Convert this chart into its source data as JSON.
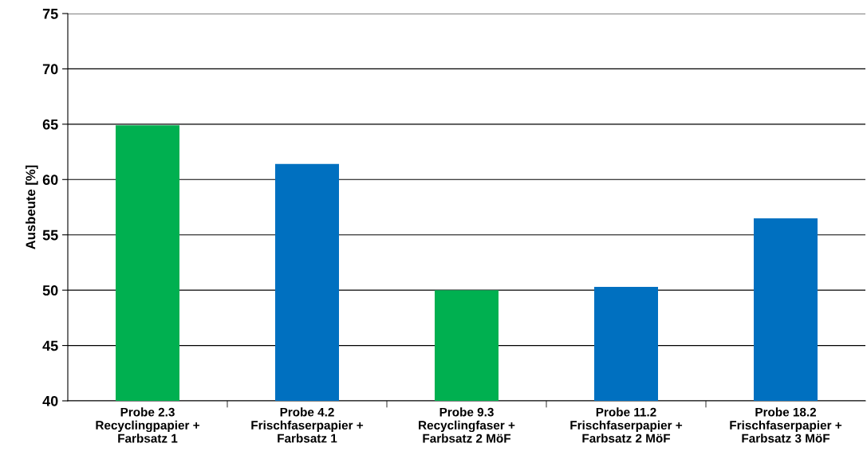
{
  "chart_data": {
    "type": "bar",
    "ylabel": "Ausbeute [%]",
    "categories": [
      "Probe 2.3\nRecyclingpapier +\nFarbsatz 1",
      "Probe 4.2\nFrischfaserpapier +\nFarbsatz 1",
      "Probe 9.3\nRecyclingfaser +\nFarbsatz 2 MöF",
      "Probe 11.2\nFrischfaserpapier +\nFarbsatz 2 MöF",
      "Probe 18.2\nFrischfaserpapier +\nFarbsatz 3 MöF"
    ],
    "values": [
      64.9,
      61.4,
      50.0,
      50.3,
      56.5
    ],
    "colors": [
      "#00b050",
      "#0070c0",
      "#00b050",
      "#0070c0",
      "#0070c0"
    ],
    "ylim": [
      40,
      75
    ],
    "yticks": [
      40,
      45,
      50,
      55,
      60,
      65,
      70,
      75
    ],
    "grid": "y"
  }
}
